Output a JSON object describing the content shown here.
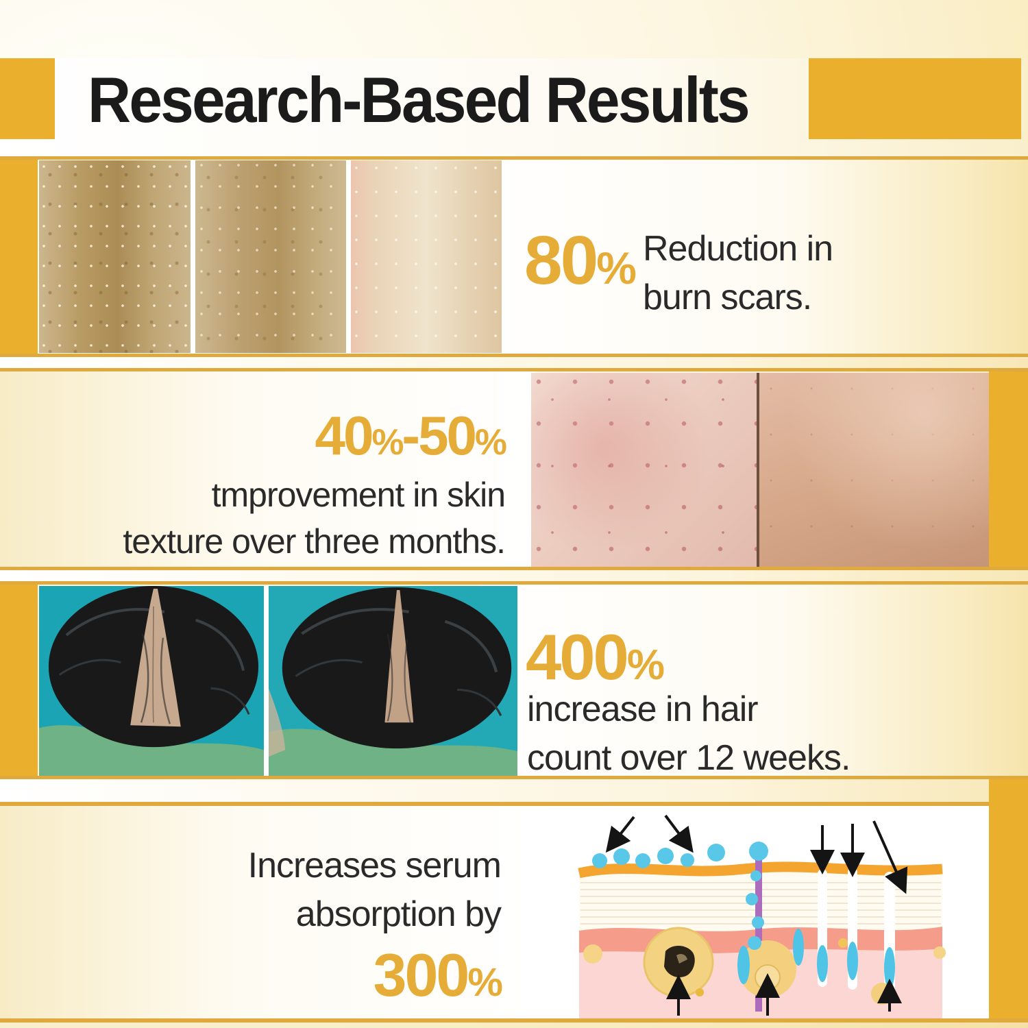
{
  "title": "Research-Based Results",
  "colors": {
    "accent_gold": "#E9AF2D",
    "line_gold": "#DFA93E",
    "stat_gold": "#E6AC38",
    "ink": "#2A2A2A"
  },
  "rows": [
    {
      "id": "burn-scars",
      "stat": "80%",
      "desc_lines": [
        "Reduction in",
        "burn scars."
      ],
      "photo_labels": [
        "burn-scar-skin-before",
        "burn-scar-skin-mid",
        "burn-scar-skin-after"
      ]
    },
    {
      "id": "skin-texture",
      "stat": "40%-50%",
      "desc_lines": [
        "tmprovement in skin",
        "texture over three months."
      ],
      "photo_labels": [
        "acne-skin-before",
        "clear-skin-after"
      ]
    },
    {
      "id": "hair-count",
      "stat": "400%",
      "desc_lines": [
        "increase in hair",
        "count over 12 weeks."
      ],
      "photo_labels": [
        "scalp-before",
        "scalp-after"
      ]
    },
    {
      "id": "serum-absorption",
      "stat": "300%",
      "desc_lines": [
        "Increases serum",
        "absorption by"
      ],
      "photo_labels": [
        "skin-absorption-diagram"
      ]
    }
  ]
}
